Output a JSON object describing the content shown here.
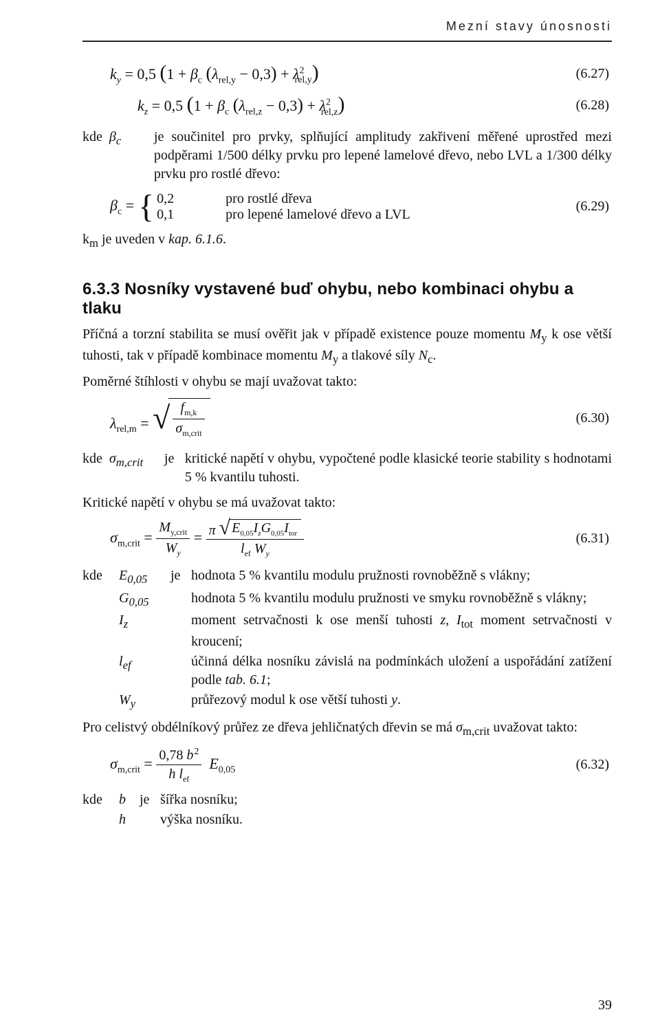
{
  "page": {
    "running_head": "Mezní stavy únosnosti",
    "page_number": "39"
  },
  "eq627": {
    "num": "(6.27)"
  },
  "eq628": {
    "num": "(6.28)"
  },
  "eq629": {
    "num": "(6.29)"
  },
  "eq630": {
    "num": "(6.30)"
  },
  "eq631": {
    "num": "(6.31)"
  },
  "eq632": {
    "num": "(6.32)"
  },
  "kde_bc": {
    "kde": "kde",
    "symbol_html": "β<sub>c</sub>",
    "text": "je součinitel pro prvky, splňující amplitudy zakřivení měřené uprostřed mezi podpěrami 1/500 délky prvku pro lepené lamelové dřevo, nebo LVL a 1/300 délky prvku pro rostlé dřevo:"
  },
  "bc_cases": {
    "v1": "0,2",
    "t1": "pro rostlé dřeva",
    "v2": "0,1",
    "t2": "pro lepené lamelové dřevo a LVL"
  },
  "km_line": "k<sub>m</sub> je uveden v <i>kap. 6.1.6</i>.",
  "section_633": "6.3.3 Nosníky vystavené buď ohybu, nebo kombinaci ohybu a tlaku",
  "p633_1": "Příčná a torzní stabilita se musí ověřit jak v případě existence pouze momentu <i>M</i><sub>y</sub> k ose větší tuhosti, tak v případě kombinace momentu <i>M</i><sub>y</sub> a tlakové síly <i>N</i><sub>c</sub>.",
  "p633_2": "Poměrné štíhlosti v ohybu se mají uvažovat takto:",
  "kde_sigma": {
    "kde": "kde",
    "symbol_html": "σ<sub>m,crit</sub>",
    "je": "je",
    "text": "kritické napětí v ohybu, vypočtené podle klasické teorie stability s hodnotami 5 % kvantilu tuhosti."
  },
  "p_krit": "Kritické napětí v ohybu se má uvažovat takto:",
  "defs31": {
    "kde": "kde",
    "je": "je",
    "rows": [
      {
        "sym": "E<sub>0,05</sub>",
        "txt": "hodnota 5 % kvantilu modulu pružnosti rovnoběžně s vlákny;"
      },
      {
        "sym": "G<sub>0,05</sub>",
        "txt": "hodnota 5 % kvantilu modulu pružnosti ve smyku rovnoběžně s vlákny;"
      },
      {
        "sym": "I<sub>z</sub>",
        "txt": "moment setrvačnosti k ose menší tuhosti <i>z</i>, <i>I</i><sub>tot</sub> moment setrvačnosti v kroucení;"
      },
      {
        "sym": "l<sub>ef</sub>",
        "txt": "účinná délka nosníku závislá na podmínkách uložení a uspořádání zatížení podle <i>tab. 6.1</i>;"
      },
      {
        "sym": "W<sub>y</sub>",
        "txt": "průřezový modul k ose větší tuhosti <i>y</i>."
      }
    ]
  },
  "p_rect": "Pro celistvý obdélníkový průřez ze dřeva jehličnatých dřevin se má <i>σ</i><sub>m,crit</sub> uvažovat takto:",
  "defs32": {
    "kde": "kde",
    "je": "je",
    "rows": [
      {
        "sym": "b",
        "txt": "šířka nosníku;"
      },
      {
        "sym": "h",
        "txt": "výška nosníku."
      }
    ]
  }
}
